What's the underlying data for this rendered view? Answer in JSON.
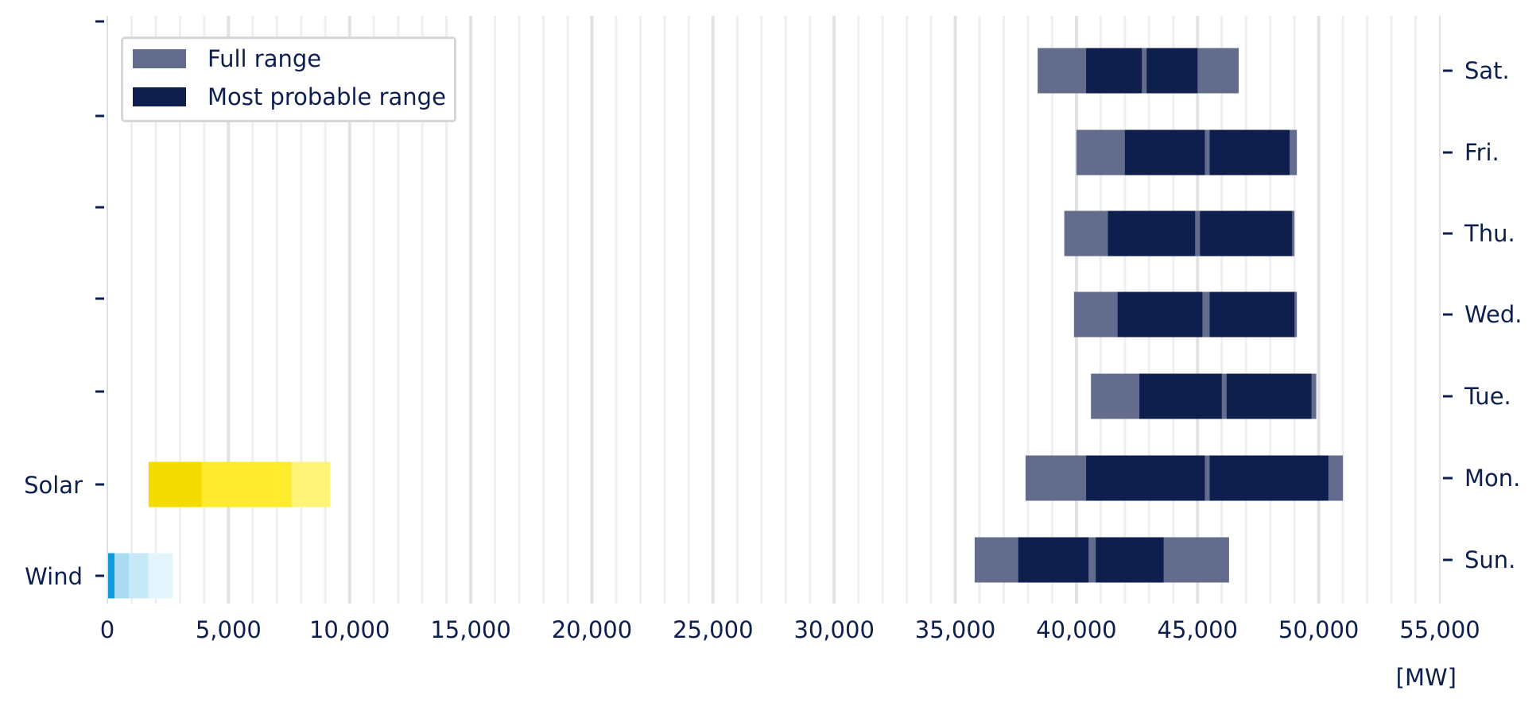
{
  "chart_data": {
    "type": "bar",
    "orientation": "horizontal",
    "unit_label": "[MW]",
    "xlim": [
      0,
      55000
    ],
    "x_ticks": [
      0,
      5000,
      10000,
      15000,
      20000,
      25000,
      30000,
      35000,
      40000,
      45000,
      50000,
      55000
    ],
    "x_tick_labels": [
      "0",
      "5,000",
      "10,000",
      "15,000",
      "20,000",
      "25,000",
      "30,000",
      "35,000",
      "40,000",
      "45,000",
      "50,000",
      "55,000"
    ],
    "grid": "vertical, every 1,000 MW",
    "legend": {
      "position": "top-left",
      "items": [
        {
          "label": "Full range",
          "color": "#636c8c"
        },
        {
          "label": "Most probable range",
          "color": "#0f1f4d"
        }
      ]
    },
    "left_categories": [
      "Wind",
      "Solar"
    ],
    "right_categories": [
      "Sun.",
      "Mon.",
      "Tue.",
      "Wed.",
      "Thu.",
      "Fri.",
      "Sat."
    ],
    "days": [
      {
        "day": "Sun.",
        "full_range": [
          35800,
          46300
        ],
        "most_probable": [
          [
            37600,
            40500
          ],
          [
            40800,
            43600
          ]
        ]
      },
      {
        "day": "Mon.",
        "full_range": [
          37900,
          51000
        ],
        "most_probable": [
          [
            40400,
            45300
          ],
          [
            45500,
            50400
          ]
        ]
      },
      {
        "day": "Tue.",
        "full_range": [
          40600,
          49900
        ],
        "most_probable": [
          [
            42600,
            46000
          ],
          [
            46200,
            49700
          ]
        ]
      },
      {
        "day": "Wed.",
        "full_range": [
          39900,
          49100
        ],
        "most_probable": [
          [
            41700,
            45200
          ],
          [
            45500,
            49000
          ]
        ]
      },
      {
        "day": "Thu.",
        "full_range": [
          39500,
          49000
        ],
        "most_probable": [
          [
            41300,
            44900
          ],
          [
            45100,
            48900
          ]
        ]
      },
      {
        "day": "Fri.",
        "full_range": [
          40000,
          49100
        ],
        "most_probable": [
          [
            42000,
            45300
          ],
          [
            45500,
            48800
          ]
        ]
      },
      {
        "day": "Sat.",
        "full_range": [
          38400,
          46700
        ],
        "most_probable": [
          [
            40400,
            42700
          ],
          [
            42900,
            45000
          ]
        ]
      }
    ],
    "solar": {
      "label": "Solar",
      "segments": [
        {
          "range": [
            1700,
            3900
          ],
          "color": "#f5dc00"
        },
        {
          "range": [
            3900,
            7600
          ],
          "color": "#ffeb2e"
        },
        {
          "range": [
            7600,
            9200
          ],
          "color": "#fff47a"
        }
      ]
    },
    "wind": {
      "label": "Wind",
      "segments": [
        {
          "range": [
            0,
            300
          ],
          "color": "#0e9cd8"
        },
        {
          "range": [
            300,
            900
          ],
          "color": "#a9dcf2"
        },
        {
          "range": [
            900,
            1700
          ],
          "color": "#c6e8f7"
        },
        {
          "range": [
            1700,
            2700
          ],
          "color": "#e4f4fc"
        }
      ]
    }
  }
}
